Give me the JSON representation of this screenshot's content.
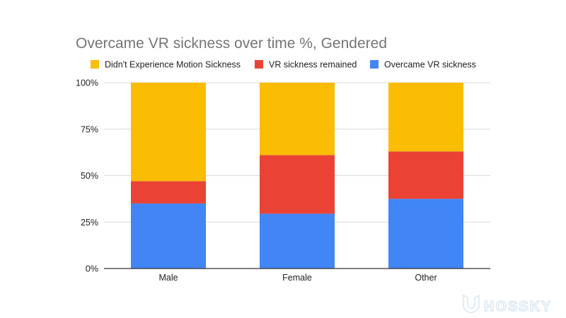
{
  "chart_data": {
    "type": "bar",
    "stacked": true,
    "percent": true,
    "title": "Overcame VR sickness over time %, Gendered",
    "categories": [
      "Male",
      "Female",
      "Other"
    ],
    "series": [
      {
        "name": "Overcame VR sickness",
        "color": "#4285f4",
        "values": [
          35,
          29.5,
          37.5
        ]
      },
      {
        "name": "VR sickness remained",
        "color": "#ea4335",
        "values": [
          12,
          31.5,
          25.5
        ]
      },
      {
        "name": "Didn't Experience Motion Sickness",
        "color": "#fbbc04",
        "values": [
          53,
          39,
          37
        ]
      }
    ],
    "legend_order": [
      2,
      1,
      0
    ],
    "legend_position": "top",
    "ylim": [
      0,
      100
    ],
    "yticks": [
      "0%",
      "25%",
      "50%",
      "75%",
      "100%"
    ],
    "grid": true
  },
  "watermark": {
    "text": "HOSSKY"
  }
}
